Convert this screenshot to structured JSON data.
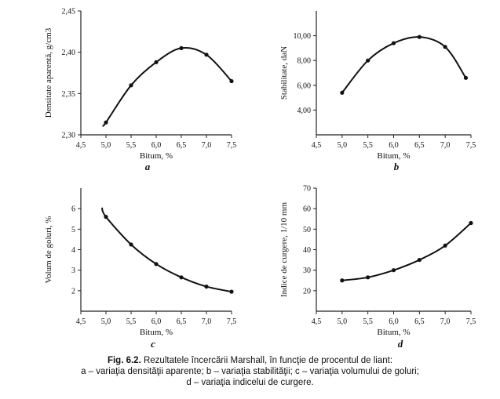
{
  "chart_data": [
    {
      "type": "line",
      "panel": "a",
      "xlabel": "Bitum, %",
      "ylabel": "Densitate aparentă, g/cm3",
      "xticks": [
        "4,5",
        "5,0",
        "5,5",
        "6,0",
        "6,5",
        "7,0",
        "7,5"
      ],
      "yticks": [
        "2,30",
        "2,35",
        "2,40",
        "2,45"
      ],
      "xlim": [
        4.5,
        7.5
      ],
      "ylim": [
        2.3,
        2.45
      ],
      "x": [
        5.0,
        5.5,
        6.0,
        6.5,
        7.0,
        7.5
      ],
      "values": [
        2.315,
        2.36,
        2.388,
        2.405,
        2.397,
        2.365
      ],
      "curve_x": [
        4.95,
        5.0,
        5.5,
        6.0,
        6.5,
        7.0,
        7.5
      ],
      "curve_y": [
        2.312,
        2.315,
        2.36,
        2.388,
        2.405,
        2.397,
        2.365
      ]
    },
    {
      "type": "line",
      "panel": "b",
      "xlabel": "Bitum, %",
      "ylabel": "Stabilitate, daN",
      "xticks": [
        "4,5",
        "5,0",
        "5,5",
        "6,0",
        "6,5",
        "7,0",
        "7,5"
      ],
      "yticks": [
        "4,00",
        "6,00",
        "8,00",
        "10,00"
      ],
      "xlim": [
        4.5,
        7.5
      ],
      "ylim": [
        2.0,
        12.0
      ],
      "x": [
        5.0,
        5.5,
        6.0,
        6.5,
        7.0,
        7.4
      ],
      "values": [
        5.4,
        8.0,
        9.4,
        9.9,
        9.1,
        6.6
      ],
      "curve_x": [
        5.0,
        5.5,
        6.0,
        6.5,
        7.0,
        7.4
      ],
      "curve_y": [
        5.4,
        8.0,
        9.4,
        9.9,
        9.1,
        6.6
      ]
    },
    {
      "type": "line",
      "panel": "c",
      "xlabel": "Bitum, %",
      "ylabel": "Volum de goluri, %",
      "xticks": [
        "4,5",
        "5,0",
        "5,5",
        "6,0",
        "6,5",
        "7,0",
        "7,5"
      ],
      "yticks": [
        "2",
        "3",
        "4",
        "5",
        "6"
      ],
      "xlim": [
        4.5,
        7.5
      ],
      "ylim": [
        1.0,
        7.0
      ],
      "x": [
        5.0,
        5.5,
        6.0,
        6.5,
        7.0,
        7.5
      ],
      "values": [
        5.6,
        4.25,
        3.3,
        2.65,
        2.2,
        1.95
      ],
      "curve_x": [
        4.92,
        5.0,
        5.5,
        6.0,
        6.5,
        7.0,
        7.5
      ],
      "curve_y": [
        6.05,
        5.6,
        4.25,
        3.3,
        2.65,
        2.2,
        1.95
      ]
    },
    {
      "type": "line",
      "panel": "d",
      "xlabel": "Bitum, %",
      "ylabel": "Indice de curgere, 1/10 mm",
      "xticks": [
        "4,5",
        "5,0",
        "5,5",
        "6,0",
        "6,5",
        "7,0",
        "7,5"
      ],
      "yticks": [
        "20",
        "30",
        "40",
        "50",
        "60",
        "70"
      ],
      "xlim": [
        4.5,
        7.5
      ],
      "ylim": [
        10,
        70
      ],
      "x": [
        5.0,
        5.5,
        6.0,
        6.5,
        7.0,
        7.5
      ],
      "values": [
        25.0,
        26.5,
        30.0,
        35.0,
        42.0,
        53.0
      ],
      "curve_x": [
        5.0,
        5.5,
        6.0,
        6.5,
        7.0,
        7.5
      ],
      "curve_y": [
        25.0,
        26.5,
        30.0,
        35.0,
        42.0,
        53.0
      ]
    }
  ],
  "caption": {
    "title": "Fig. 6.2.",
    "title_text": "Rezultatele încercării Marshall, în funcţie de procentul de liant:",
    "line2": "a – variaţia densităţii aparente; b – variaţia stabilităţii; c – variaţia volumului de goluri;",
    "line3": "d – variaţia indicelui de curgere."
  }
}
